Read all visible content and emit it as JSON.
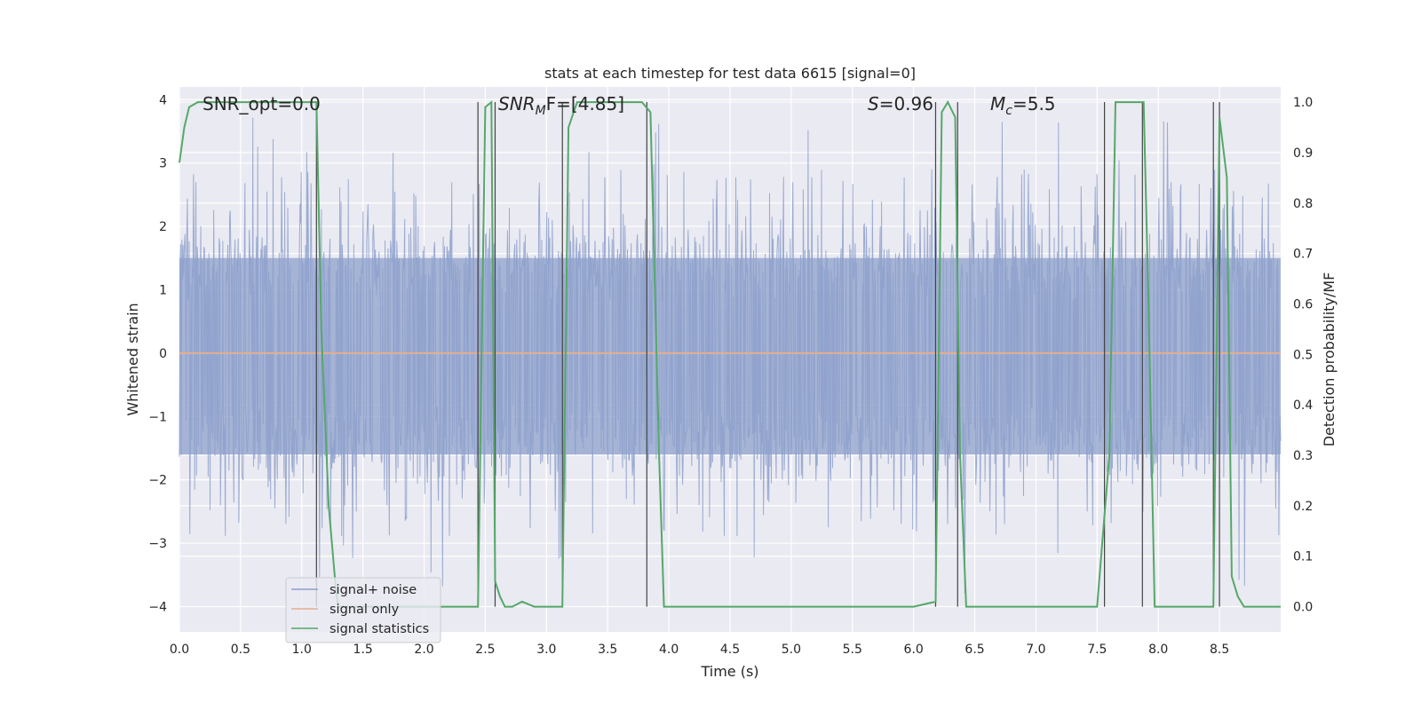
{
  "chart_data": {
    "type": "line",
    "title": "stats at each timestep for test data 6615 [signal=0]",
    "xlabel": "Time (s)",
    "ylabel": "Whitened strain",
    "y2label": "Detection probability/MF",
    "xlim": [
      0.0,
      9.0
    ],
    "ylim": [
      -4.4,
      4.2
    ],
    "y2lim": [
      -0.05,
      1.03
    ],
    "xticks": [
      "0.0",
      "0.5",
      "1.0",
      "1.5",
      "2.0",
      "2.5",
      "3.0",
      "3.5",
      "4.0",
      "4.5",
      "5.0",
      "5.5",
      "6.0",
      "6.5",
      "7.0",
      "7.5",
      "8.0",
      "8.5"
    ],
    "xtick_values": [
      0.0,
      0.5,
      1.0,
      1.5,
      2.0,
      2.5,
      3.0,
      3.5,
      4.0,
      4.5,
      5.0,
      5.5,
      6.0,
      6.5,
      7.0,
      7.5,
      8.0,
      8.5
    ],
    "yticks": [
      "−4",
      "−3",
      "−2",
      "−1",
      "0",
      "1",
      "2",
      "3",
      "4"
    ],
    "ytick_values": [
      -4,
      -3,
      -2,
      -1,
      0,
      1,
      2,
      3,
      4
    ],
    "y2ticks": [
      "0.0",
      "0.1",
      "0.2",
      "0.3",
      "0.4",
      "0.5",
      "0.6",
      "0.7",
      "0.8",
      "0.9",
      "1.0"
    ],
    "y2tick_values": [
      0.0,
      0.1,
      0.2,
      0.3,
      0.4,
      0.5,
      0.6,
      0.7,
      0.8,
      0.9,
      1.0
    ],
    "grid": true,
    "legend_position": "lower-left",
    "annotations": {
      "snr_opt": "SNR_opt=0.0",
      "snr_mf_base": "SNR",
      "snr_mf_sub": "M",
      "snr_mf_rest": "F=[4.85]",
      "s_base": "S",
      "s_rest": "=0.96",
      "mc_base": "M",
      "mc_sub": "c",
      "mc_rest": "=5.5"
    },
    "series": [
      {
        "name": "signal+ noise",
        "color": "#8da0cb",
        "style": "noise",
        "x_range": [
          0.0,
          9.0
        ],
        "typical_abs_range": [
          1.2,
          2.4
        ],
        "extreme_range": [
          -4.0,
          3.8
        ]
      },
      {
        "name": "signal only",
        "color": "#e5ae8e",
        "constant_value": 0.0
      },
      {
        "name": "signal statistics",
        "color": "#55a868",
        "axis": "right",
        "x": [
          0.0,
          0.04,
          0.08,
          0.15,
          0.3,
          0.6,
          0.9,
          1.12,
          1.16,
          1.22,
          1.28,
          1.3,
          1.5,
          1.8,
          2.1,
          2.3,
          2.44,
          2.5,
          2.55,
          2.58,
          2.62,
          2.66,
          2.72,
          2.8,
          2.9,
          3.0,
          3.1,
          3.13,
          3.18,
          3.25,
          3.35,
          3.6,
          3.78,
          3.85,
          3.92,
          3.96,
          4.1,
          4.5,
          5.0,
          5.5,
          6.0,
          6.18,
          6.23,
          6.28,
          6.34,
          6.38,
          6.43,
          6.7,
          7.0,
          7.3,
          7.5,
          7.6,
          7.65,
          7.75,
          7.88,
          7.92,
          7.97,
          8.05,
          8.3,
          8.45,
          8.5,
          8.56,
          8.6,
          8.65,
          8.7,
          8.75,
          8.9,
          9.0
        ],
        "y": [
          0.88,
          0.95,
          0.99,
          1.0,
          1.0,
          1.0,
          1.0,
          1.0,
          0.55,
          0.2,
          0.03,
          0.0,
          0.0,
          0.0,
          0.0,
          0.0,
          0.0,
          0.99,
          1.0,
          0.05,
          0.02,
          0.0,
          0.0,
          0.01,
          0.0,
          0.0,
          0.0,
          0.0,
          0.95,
          1.0,
          1.0,
          1.0,
          1.0,
          0.98,
          0.3,
          0.0,
          0.0,
          0.0,
          0.0,
          0.0,
          0.0,
          0.01,
          0.98,
          1.0,
          0.97,
          0.3,
          0.0,
          0.0,
          0.0,
          0.0,
          0.0,
          0.3,
          1.0,
          1.0,
          1.0,
          0.6,
          0.0,
          0.0,
          0.0,
          0.0,
          0.97,
          0.85,
          0.06,
          0.02,
          0.0,
          0.0,
          0.0,
          0.0
        ]
      }
    ],
    "vertical_markers": [
      1.12,
      2.44,
      2.58,
      3.13,
      3.82,
      6.18,
      6.36,
      7.56,
      7.87,
      8.45,
      8.5
    ]
  }
}
